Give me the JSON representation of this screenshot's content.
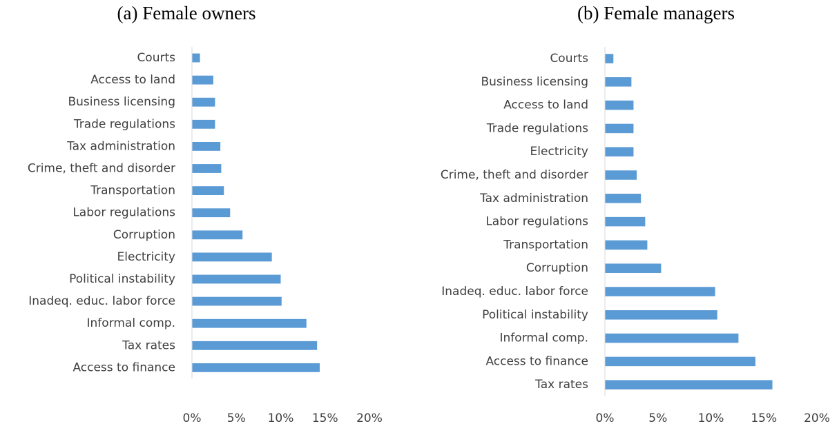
{
  "chart_data": [
    {
      "type": "barh",
      "title": "(a) Female owners",
      "color": "#5b9bd5",
      "categories": [
        "Courts",
        "Access to land",
        "Business licensing",
        "Trade regulations",
        "Tax administration",
        "Crime, theft and disorder",
        "Transportation",
        "Labor regulations",
        "Corruption",
        "Electricity",
        "Political instability",
        "Inadeq. educ. labor force",
        "Informal comp.",
        "Tax rates",
        "Access to finance"
      ],
      "values": [
        0.9,
        2.4,
        2.6,
        2.6,
        3.2,
        3.3,
        3.6,
        4.3,
        5.7,
        9.0,
        10.0,
        10.1,
        12.9,
        14.1,
        14.4
      ],
      "xlim": [
        0,
        20
      ],
      "xticks": [
        {
          "value": 0,
          "label": "0%"
        },
        {
          "value": 5,
          "label": "5%"
        },
        {
          "value": 10,
          "label": "10%"
        },
        {
          "value": 15,
          "label": "15%"
        },
        {
          "value": 20,
          "label": "20%"
        }
      ]
    },
    {
      "type": "barh",
      "title": "(b) Female managers",
      "color": "#5b9bd5",
      "categories": [
        "Courts",
        "Business licensing",
        "Access to land",
        "Trade regulations",
        "Electricity",
        "Crime, theft and disorder",
        "Tax administration",
        "Labor regulations",
        "Transportation",
        "Corruption",
        "Inadeq. educ. labor force",
        "Political instability",
        "Informal comp.",
        "Access to finance",
        "Tax rates"
      ],
      "values": [
        0.8,
        2.5,
        2.7,
        2.7,
        2.7,
        3.0,
        3.4,
        3.8,
        4.0,
        5.3,
        10.4,
        10.6,
        12.6,
        14.2,
        15.8
      ],
      "xlim": [
        0,
        20
      ],
      "xticks": [
        {
          "value": 0,
          "label": "0%"
        },
        {
          "value": 5,
          "label": "5%"
        },
        {
          "value": 10,
          "label": "10%"
        },
        {
          "value": 15,
          "label": "15%"
        },
        {
          "value": 20,
          "label": "20%"
        }
      ]
    }
  ]
}
